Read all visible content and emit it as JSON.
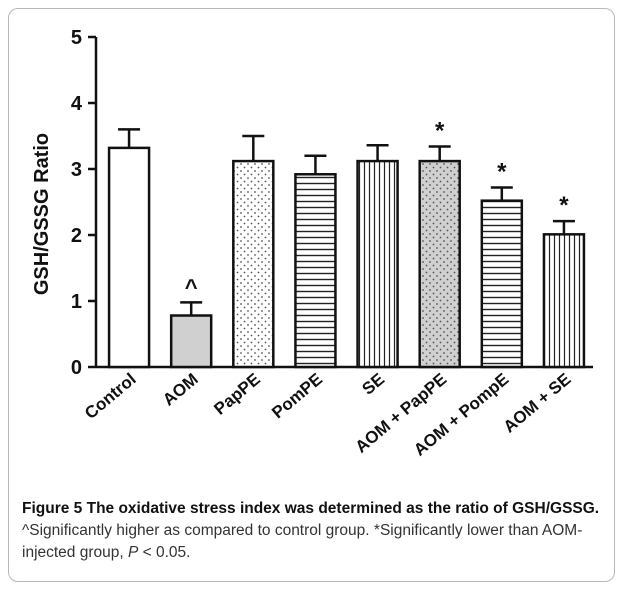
{
  "chart_data": {
    "type": "bar",
    "ylabel": "GSH/GSSG Ratio",
    "ylim": [
      0,
      5
    ],
    "yticks": [
      "0",
      "1",
      "2",
      "3",
      "4",
      "5"
    ],
    "categories": [
      "Control",
      "AOM",
      "PapPE",
      "PomPE",
      "SE",
      "AOM + PapPE",
      "AOM + PompE",
      "AOM + SE"
    ],
    "values": [
      3.32,
      0.78,
      3.12,
      2.92,
      3.12,
      3.12,
      2.52,
      2.01
    ],
    "errors": [
      0.28,
      0.2,
      0.38,
      0.28,
      0.24,
      0.22,
      0.2,
      0.2
    ],
    "annotations": [
      "",
      "^",
      "",
      "",
      "",
      "*",
      "*",
      "*"
    ],
    "patterns": [
      "plain",
      "gray",
      "dots",
      "hlines",
      "vlines",
      "gray-dots",
      "hlines",
      "vlines"
    ]
  },
  "caption": {
    "lead": "Figure 5 The oxidative stress index was determined as the ratio of GSH/GSSG.",
    "text_1": " ^Significantly higher as compared to control group. *Significantly lower than AOM-injected group, ",
    "p_symbol": "P",
    "text_2": " < 0.05."
  }
}
